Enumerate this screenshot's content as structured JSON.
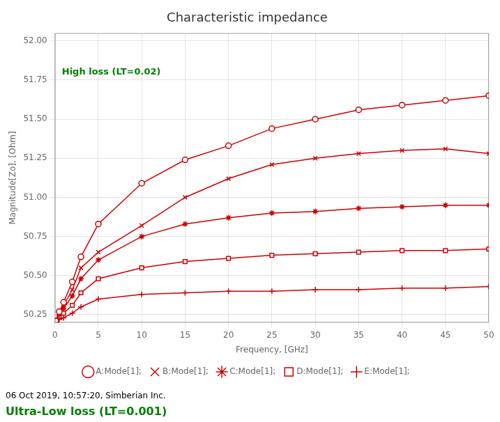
{
  "chart_data": {
    "type": "line",
    "title": "Characteristic impedance",
    "x_label": "Frequency, [GHz]",
    "y_label": "Magnitude[Zo], [Ohm]",
    "caption": "06 Oct 2019, 10:57:20, Simberian Inc.",
    "annotations": [
      {
        "text": "High loss (LT=0.02)",
        "color": "#008000"
      },
      {
        "text": "Ultra-Low loss (LT=0.001)",
        "color": "#008000"
      }
    ],
    "xlim": [
      0,
      50
    ],
    "ylim": [
      50.2,
      52.05
    ],
    "xticks": [
      0,
      5,
      10,
      15,
      20,
      25,
      30,
      35,
      40,
      45,
      50
    ],
    "yticks": [
      50.25,
      {
        "value": 50.5,
        "label": "50.50"
      },
      50.75,
      {
        "value": 51.0,
        "label": "51.00"
      },
      51.25,
      {
        "value": 51.5,
        "label": "51.50"
      },
      51.75,
      {
        "value": 52.0,
        "label": "52.00"
      }
    ],
    "grid": true,
    "legend": "bottom",
    "x": [
      0.1,
      0.5,
      1.0,
      2.0,
      3.0,
      5.0,
      10.0,
      15.0,
      20.0,
      25.0,
      30.0,
      35.0,
      40.0,
      45.0,
      50.0
    ],
    "series": [
      {
        "name": "A:Mode[1];",
        "color": "#cc0000",
        "marker": "circle",
        "values": [
          50.21,
          50.27,
          50.33,
          50.46,
          50.62,
          50.83,
          51.09,
          51.24,
          51.33,
          51.44,
          51.5,
          51.56,
          51.59,
          51.62,
          51.65
        ]
      },
      {
        "name": "B:Mode[1];",
        "color": "#cc0000",
        "marker": "x",
        "values": [
          50.21,
          50.26,
          50.31,
          50.41,
          50.55,
          50.65,
          50.82,
          51.0,
          51.12,
          51.21,
          51.25,
          51.28,
          51.3,
          51.31,
          51.28
        ]
      },
      {
        "name": "C:Mode[1];",
        "color": "#cc0000",
        "marker": "star",
        "values": [
          50.21,
          50.25,
          50.29,
          50.37,
          50.48,
          50.6,
          50.75,
          50.83,
          50.87,
          50.9,
          50.91,
          50.93,
          50.94,
          50.95,
          50.95
        ]
      },
      {
        "name": "D:Mode[1];",
        "color": "#cc0000",
        "marker": "square",
        "values": [
          50.21,
          50.24,
          50.26,
          50.31,
          50.39,
          50.48,
          50.55,
          50.59,
          50.61,
          50.63,
          50.64,
          50.65,
          50.66,
          50.66,
          50.67
        ]
      },
      {
        "name": "E:Mode[1];",
        "color": "#cc0000",
        "marker": "plus",
        "values": [
          50.2,
          50.22,
          50.23,
          50.26,
          50.3,
          50.35,
          50.38,
          50.39,
          50.4,
          50.4,
          50.41,
          50.41,
          50.42,
          50.42,
          50.43
        ]
      }
    ]
  }
}
